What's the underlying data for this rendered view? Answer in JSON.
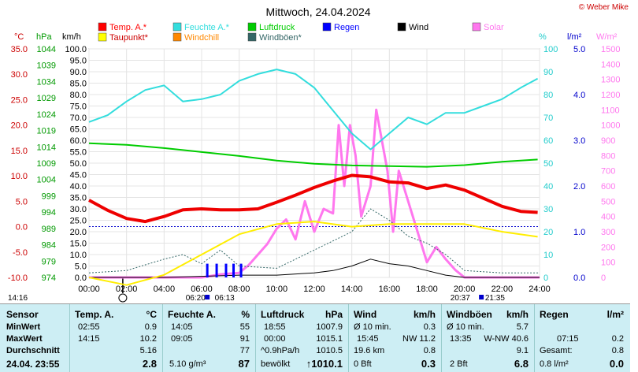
{
  "title": "Mittwoch, 24.04.2024",
  "brand": "© Weber Mike",
  "legend": [
    {
      "label": "Temp. A.*",
      "color": "#ff0000"
    },
    {
      "label": "Feuchte A.*",
      "color": "#33dddd"
    },
    {
      "label": "Luftdruck",
      "color": "#00cc00"
    },
    {
      "label": "Regen",
      "color": "#0000ff"
    },
    {
      "label": "Wind",
      "color": "#000000"
    },
    {
      "label": "Solar",
      "color": "#ff77ee"
    },
    {
      "label": "Taupunkt*",
      "color": "#ffff00"
    },
    {
      "label": "Windchill",
      "color": "#ff8800"
    },
    {
      "label": "Windböen*",
      "color": "#336666"
    }
  ],
  "axes": {
    "temp": {
      "unit": "°C",
      "ticks": [
        "35.0",
        "30.0",
        "25.0",
        "20.0",
        "15.0",
        "10.0",
        "5.0",
        "0.0",
        "-5.0",
        "-10.0"
      ]
    },
    "pressure": {
      "unit": "hPa",
      "ticks": [
        "1044",
        "1039",
        "1034",
        "1029",
        "1024",
        "1019",
        "1014",
        "1009",
        "1004",
        "999",
        "994",
        "989",
        "984",
        "979",
        "974"
      ]
    },
    "wind": {
      "unit": "km/h",
      "ticks": [
        "100.0",
        "95.0",
        "90.0",
        "85.0",
        "80.0",
        "75.0",
        "70.0",
        "65.0",
        "60.0",
        "55.0",
        "50.0",
        "45.0",
        "40.0",
        "35.0",
        "30.0",
        "25.0",
        "20.0",
        "15.0",
        "10.0",
        "5.0",
        "0.0"
      ]
    },
    "humidity": {
      "unit": "%",
      "ticks": [
        "100",
        "90",
        "80",
        "70",
        "60",
        "50",
        "40",
        "30",
        "20",
        "10",
        "0"
      ]
    },
    "rain": {
      "unit": "l/m²",
      "ticks": [
        "5.0",
        "4.0",
        "3.0",
        "2.0",
        "1.0",
        "0.0"
      ]
    },
    "solar": {
      "unit": "W/m²",
      "ticks": [
        "1500",
        "1400",
        "1300",
        "1200",
        "1100",
        "1000",
        "900",
        "800",
        "700",
        "600",
        "500",
        "400",
        "300",
        "200",
        "100",
        "0"
      ]
    },
    "time_ticks": [
      "00:00",
      "02:00",
      "04:00",
      "06:00",
      "08:00",
      "10:00",
      "12:00",
      "14:00",
      "16:00",
      "18:00",
      "20:00",
      "22:00",
      "24:00"
    ]
  },
  "sun": {
    "sunrise": "06:20",
    "sunrise2": "06:13",
    "sunset": "20:37",
    "sunset2": "21:35",
    "now": "14:16"
  },
  "chart_data": {
    "type": "line",
    "title": "Mittwoch, 24.04.2024",
    "x_unit": "hours",
    "series": [
      {
        "name": "Temp. A.*",
        "unit": "°C",
        "x": [
          0,
          1,
          2,
          3,
          4,
          5,
          6,
          7,
          8,
          9,
          10,
          11,
          12,
          13,
          14,
          15,
          16,
          17,
          18,
          19,
          20,
          21,
          22,
          23,
          23.9
        ],
        "values": [
          5.2,
          3.2,
          1.6,
          1.0,
          2.0,
          3.3,
          3.5,
          3.3,
          3.3,
          3.5,
          4.8,
          6.2,
          7.7,
          9.0,
          10.1,
          9.8,
          8.8,
          8.6,
          7.5,
          8.2,
          7.2,
          5.6,
          4.0,
          3.0,
          2.8
        ]
      },
      {
        "name": "Feuchte A.*",
        "unit": "%",
        "x": [
          0,
          1,
          2,
          3,
          4,
          5,
          6,
          7,
          8,
          9,
          10,
          11,
          12,
          13,
          14,
          15,
          16,
          17,
          18,
          19,
          20,
          21,
          22,
          23,
          23.9
        ],
        "values": [
          68,
          71,
          77,
          82,
          84,
          77,
          78,
          80,
          86,
          89,
          91,
          89,
          83,
          73,
          63,
          56,
          63,
          70,
          67,
          72,
          72,
          75,
          78,
          83,
          87
        ]
      },
      {
        "name": "Luftdruck",
        "unit": "hPa",
        "x": [
          0,
          2,
          4,
          6,
          8,
          10,
          12,
          14,
          16,
          18,
          20,
          22,
          23.9
        ],
        "values": [
          1015.1,
          1014.6,
          1013.6,
          1012.4,
          1011.2,
          1009.8,
          1008.8,
          1008.3,
          1008.1,
          1007.9,
          1008.4,
          1009.4,
          1010.1
        ]
      },
      {
        "name": "Taupunkt*",
        "unit": "°C",
        "x": [
          0,
          2,
          4,
          6,
          8,
          10,
          12,
          14,
          16,
          18,
          20,
          22,
          23.9
        ],
        "values": [
          -10.0,
          -11.5,
          -9.5,
          -5.5,
          -1.5,
          0.5,
          1.0,
          0.0,
          0.5,
          0.5,
          0.5,
          -1.0,
          -2.0
        ]
      },
      {
        "name": "Solar",
        "unit": "W/m²",
        "x": [
          0,
          6,
          6.5,
          7,
          8,
          8.5,
          9,
          9.5,
          10,
          10.5,
          11,
          11.5,
          12,
          12.5,
          13,
          13.3,
          13.6,
          13.9,
          14.2,
          14.5,
          15,
          15.3,
          15.6,
          15.9,
          16.2,
          16.5,
          17,
          17.5,
          18,
          18.5,
          19,
          19.5,
          20,
          24
        ],
        "values": [
          0,
          0,
          10,
          20,
          30,
          80,
          150,
          220,
          320,
          380,
          250,
          500,
          300,
          450,
          420,
          1000,
          600,
          1000,
          800,
          400,
          600,
          1100,
          900,
          700,
          300,
          700,
          500,
          300,
          100,
          200,
          120,
          50,
          0,
          0
        ]
      },
      {
        "name": "Wind",
        "unit": "km/h",
        "x": [
          0,
          4,
          6,
          8,
          10,
          12,
          13,
          14,
          15,
          16,
          17,
          18,
          19,
          20,
          24
        ],
        "values": [
          0,
          0,
          0.5,
          1,
          1,
          2,
          3,
          5,
          8,
          6,
          5,
          3,
          1,
          0,
          0
        ]
      },
      {
        "name": "Windböen*",
        "unit": "km/h",
        "x": [
          0,
          2,
          4,
          5,
          6,
          7,
          8,
          10,
          12,
          14,
          15,
          16,
          17,
          18,
          19,
          20,
          22,
          24
        ],
        "values": [
          2,
          3,
          8,
          10,
          6,
          12,
          5,
          4,
          12,
          20,
          30,
          25,
          18,
          15,
          10,
          3,
          2,
          2
        ]
      },
      {
        "name": "Regen",
        "unit": "l/m²",
        "x": [
          6.3,
          6.8,
          7.3,
          7.7,
          8.1
        ],
        "values": [
          0.3,
          0.3,
          0.3,
          0.3,
          0.3
        ]
      }
    ]
  },
  "table": {
    "headers": {
      "sensor": "Sensor",
      "temp": "Temp. A.",
      "temp_u": "°C",
      "hum": "Feuchte A.",
      "hum_u": "%",
      "press": "Luftdruck",
      "press_u": "hPa",
      "wind": "Wind",
      "wind_u": "km/h",
      "gust": "Windböen",
      "gust_u": "km/h",
      "rain": "Regen",
      "rain_u": "l/m²"
    },
    "row_labels": [
      "MinWert",
      "MaxWert",
      "Durchschnitt",
      "24.04. 23:55"
    ],
    "temp": {
      "min_t": "02:55",
      "min_v": "0.9",
      "max_t": "14:15",
      "max_v": "10.2",
      "avg": "5.16",
      "cur": "2.8"
    },
    "hum": {
      "min_t": "14:05",
      "min_v": "55",
      "max_t": "09:05",
      "max_v": "91",
      "avg": "77",
      "abs": "5.10 g/m³",
      "cur": "87"
    },
    "press": {
      "min_t": "18:55",
      "min_v": "1007.9",
      "max_t": "00:00",
      "max_v": "1015.1",
      "trend_l": "^0.9hPa/h",
      "trend_v": "1010.5",
      "cond": "bewölkt",
      "cur": "↑1010.1"
    },
    "wind": {
      "r1_l": "Ø 10 min.",
      "r1_v": "0.3",
      "r2_t": "15:45",
      "r2_v": "NW 11.2",
      "r3_l": "19.6 km",
      "r3_v": "0.8",
      "r4_l": "0 Bft",
      "r4_v": "0.3"
    },
    "gust": {
      "r1_l": "Ø 10 min.",
      "r1_v": "5.7",
      "r2_t": "13:35",
      "r2_v": "W-NW 40.6",
      "r3_v": "9.1",
      "r4_l": "2 Bft",
      "r4_v": "6.8"
    },
    "rain": {
      "r2_t": "07:15",
      "r2_v": "0.2",
      "r3_l": "Gesamt:",
      "r3_v": "0.8",
      "r4_l": "0.8 l/m²",
      "r4_v": "0.0"
    }
  }
}
